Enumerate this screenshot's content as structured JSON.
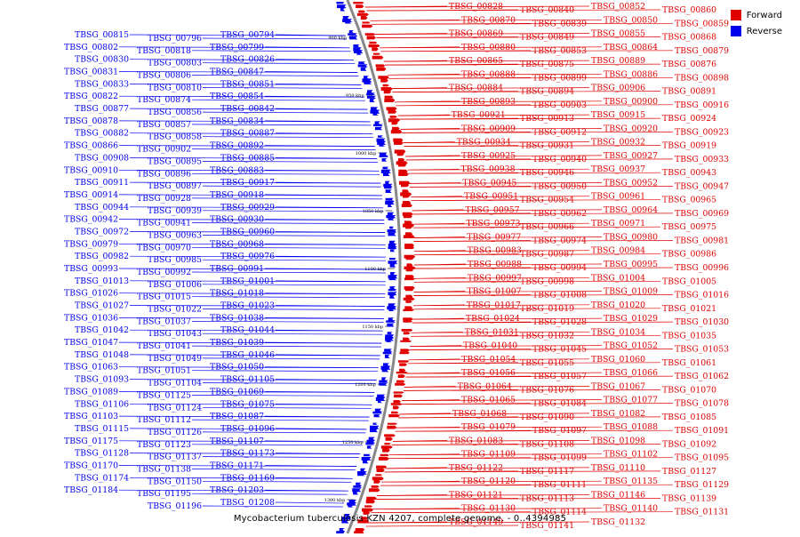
{
  "legend": {
    "forward_label": "Forward",
    "reverse_label": "Reverse",
    "forward_color": "#e00000",
    "reverse_color": "#0000ee"
  },
  "caption": "Mycobacterium tuberculosis KZN 4207, complete genome. - 0..4394985",
  "ruler_ticks": [
    "900 kbp",
    "950 kbp",
    "1000 kbp",
    "1050 kbp",
    "1100 kbp",
    "1150 kbp",
    "1200 kbp",
    "1250 kbp",
    "1300 kbp"
  ],
  "forward_genes": [
    "TBSG_00828",
    "TBSG_00840",
    "TBSG_00852",
    "TBSG_00860",
    "TBSG_00870",
    "TBSG_00839",
    "TBSG_00850",
    "TBSG_00859",
    "TBSG_00869",
    "TBSG_00849",
    "TBSG_00855",
    "TBSG_00868",
    "TBSG_00880",
    "TBSG_00853",
    "TBSG_00864",
    "TBSG_00879",
    "TBSG_00865",
    "TBSG_00875",
    "TBSG_00889",
    "TBSG_00876",
    "TBSG_00888",
    "TBSG_00899",
    "TBSG_00886",
    "TBSG_00898",
    "TBSG_00884",
    "TBSG_00894",
    "TBSG_00906",
    "TBSG_00891",
    "TBSG_00893",
    "TBSG_00903",
    "TBSG_00900",
    "TBSG_00916",
    "TBSG_00921",
    "TBSG_00913",
    "TBSG_00915",
    "TBSG_00924",
    "TBSG_00909",
    "TBSG_00912",
    "TBSG_00920",
    "TBSG_00923",
    "TBSG_00934",
    "TBSG_00931",
    "TBSG_00932",
    "TBSG_00919",
    "TBSG_00925",
    "TBSG_00940",
    "TBSG_00927",
    "TBSG_00933",
    "TBSG_00938",
    "TBSG_00946",
    "TBSG_00937",
    "TBSG_00943",
    "TBSG_00945",
    "TBSG_00950",
    "TBSG_00952",
    "TBSG_00947",
    "TBSG_00951",
    "TBSG_00954",
    "TBSG_00961",
    "TBSG_00965",
    "TBSG_00957",
    "TBSG_00962",
    "TBSG_00964",
    "TBSG_00969",
    "TBSG_00973",
    "TBSG_00966",
    "TBSG_00971",
    "TBSG_00975",
    "TBSG_00977",
    "TBSG_00974",
    "TBSG_00980",
    "TBSG_00981",
    "TBSG_00983",
    "TBSG_00987",
    "TBSG_00984",
    "TBSG_00986",
    "TBSG_00988",
    "TBSG_00994",
    "TBSG_00995",
    "TBSG_00996",
    "TBSG_00997",
    "TBSG_00998",
    "TBSG_01004",
    "TBSG_01005",
    "TBSG_01007",
    "TBSG_01008",
    "TBSG_01009",
    "TBSG_01016",
    "TBSG_01017",
    "TBSG_01019",
    "TBSG_01020",
    "TBSG_01021",
    "TBSG_01024",
    "TBSG_01028",
    "TBSG_01029",
    "TBSG_01030",
    "TBSG_01031",
    "TBSG_01032",
    "TBSG_01034",
    "TBSG_01035",
    "TBSG_01040",
    "TBSG_01045",
    "TBSG_01052",
    "TBSG_01053",
    "TBSG_01054",
    "TBSG_01055",
    "TBSG_01060",
    "TBSG_01061",
    "TBSG_01056",
    "TBSG_01057",
    "TBSG_01066",
    "TBSG_01062",
    "TBSG_01064",
    "TBSG_01076",
    "TBSG_01067",
    "TBSG_01070",
    "TBSG_01065",
    "TBSG_01084",
    "TBSG_01077",
    "TBSG_01078",
    "TBSG_01068",
    "TBSG_01090",
    "TBSG_01082",
    "TBSG_01085",
    "TBSG_01079",
    "TBSG_01097",
    "TBSG_01088",
    "TBSG_01091",
    "TBSG_01083",
    "TBSG_01108",
    "TBSG_01098",
    "TBSG_01092",
    "TBSG_01109",
    "TBSG_01099",
    "TBSG_01102",
    "TBSG_01095",
    "TBSG_01122",
    "TBSG_01117",
    "TBSG_01110",
    "TBSG_01127",
    "TBSG_01120",
    "TBSG_01111",
    "TBSG_01135",
    "TBSG_01129",
    "TBSG_01121",
    "TBSG_01113",
    "TBSG_01146",
    "TBSG_01139",
    "TBSG_01130",
    "TBSG_01114",
    "TBSG_01140",
    "TBSG_01131",
    "TBSG_01149",
    "TBSG_01141",
    "TBSG_01132"
  ],
  "reverse_genes": [
    "TBSG_00794",
    "TBSG_00796",
    "TBSG_00815",
    "TBSG_00799",
    "TBSG_00818",
    "TBSG_00802",
    "TBSG_00826",
    "TBSG_00803",
    "TBSG_00830",
    "TBSG_00847",
    "TBSG_00806",
    "TBSG_00831",
    "TBSG_00851",
    "TBSG_00810",
    "TBSG_00833",
    "TBSG_00854",
    "TBSG_00874",
    "TBSG_00822",
    "TBSG_00842",
    "TBSG_00856",
    "TBSG_00877",
    "TBSG_00834",
    "TBSG_00857",
    "TBSG_00878",
    "TBSG_00887",
    "TBSG_00858",
    "TBSG_00882",
    "TBSG_00892",
    "TBSG_00902",
    "TBSG_00866",
    "TBSG_00885",
    "TBSG_00895",
    "TBSG_00908",
    "TBSG_00883",
    "TBSG_00896",
    "TBSG_00910",
    "TBSG_00917",
    "TBSG_00897",
    "TBSG_00911",
    "TBSG_00918",
    "TBSG_00928",
    "TBSG_00914",
    "TBSG_00929",
    "TBSG_00939",
    "TBSG_00944",
    "TBSG_00930",
    "TBSG_00941",
    "TBSG_00942",
    "TBSG_00960",
    "TBSG_00963",
    "TBSG_00972",
    "TBSG_00968",
    "TBSG_00970",
    "TBSG_00979",
    "TBSG_00976",
    "TBSG_00985",
    "TBSG_00982",
    "TBSG_00991",
    "TBSG_00992",
    "TBSG_00993",
    "TBSG_01001",
    "TBSG_01006",
    "TBSG_01013",
    "TBSG_01018",
    "TBSG_01015",
    "TBSG_01026",
    "TBSG_01023",
    "TBSG_01022",
    "TBSG_01027",
    "TBSG_01038",
    "TBSG_01037",
    "TBSG_01036",
    "TBSG_01044",
    "TBSG_01043",
    "TBSG_01042",
    "TBSG_01039",
    "TBSG_01041",
    "TBSG_01047",
    "TBSG_01046",
    "TBSG_01049",
    "TBSG_01048",
    "TBSG_01050",
    "TBSG_01051",
    "TBSG_01063",
    "TBSG_01105",
    "TBSG_01104",
    "TBSG_01093",
    "TBSG_01069",
    "TBSG_01125",
    "TBSG_01089",
    "TBSG_01075",
    "TBSG_01124",
    "TBSG_01106",
    "TBSG_01087",
    "TBSG_01112",
    "TBSG_01103",
    "TBSG_01096",
    "TBSG_01126",
    "TBSG_01115",
    "TBSG_01107",
    "TBSG_01123",
    "TBSG_01175",
    "TBSG_01173",
    "TBSG_01137",
    "TBSG_01128",
    "TBSG_01171",
    "TBSG_01138",
    "TBSG_01170",
    "TBSG_01169",
    "TBSG_01150",
    "TBSG_01174",
    "TBSG_01203",
    "TBSG_01195",
    "TBSG_01184",
    "TBSG_01208",
    "TBSG_01196"
  ]
}
